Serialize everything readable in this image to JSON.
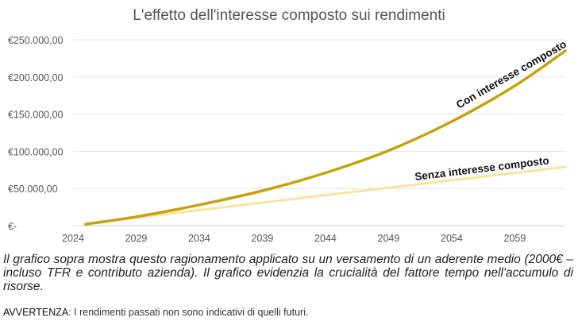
{
  "chart_data": {
    "type": "line",
    "title": "L'effetto dell'interesse composto sui rendimenti",
    "xlabel": "",
    "ylabel": "",
    "x_ticks": [
      "2024",
      "2029",
      "2034",
      "2039",
      "2044",
      "2049",
      "2054",
      "2059"
    ],
    "y_ticks": [
      "€250.000,00",
      "€200.000,00",
      "€150.000,00",
      "€100.000,00",
      "€50.000,00",
      "€-"
    ],
    "xlim": [
      2024,
      2063
    ],
    "ylim": [
      0,
      250000
    ],
    "grid": true,
    "legend": "none",
    "series": [
      {
        "name": "Con interesse composto",
        "color": "#c9a00c",
        "x": [
          2025,
          2029,
          2034,
          2039,
          2044,
          2049,
          2054,
          2059,
          2063
        ],
        "values": [
          2000,
          12000,
          28000,
          47000,
          71000,
          101000,
          140000,
          188000,
          235000
        ]
      },
      {
        "name": "Senza interesse composto",
        "color": "#fae39c",
        "x": [
          2025,
          2029,
          2034,
          2039,
          2044,
          2049,
          2054,
          2059,
          2063
        ],
        "values": [
          2000,
          11000,
          21000,
          31000,
          41000,
          51000,
          61000,
          71000,
          79000
        ]
      }
    ]
  },
  "caption": "Il grafico sopra mostra questo ragionamento applicato su un versamento di un aderente medio (2000€ – incluso TFR e contributo azienda). Il grafico evidenzia la crucialità del fattore tempo nell'accumulo di risorse.",
  "warning": {
    "lead": "AVVERTENZA",
    "text": ": I rendimenti passati non sono indicativi di quelli futuri."
  }
}
